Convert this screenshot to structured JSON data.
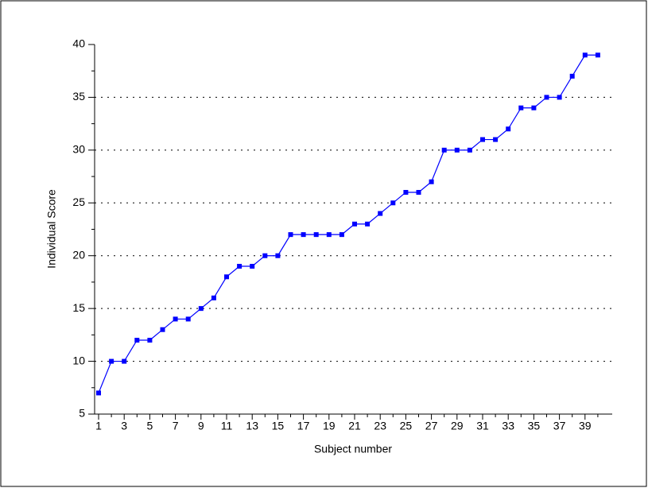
{
  "chart_data": {
    "type": "line",
    "xlabel": "Subject number",
    "ylabel": "Individual Score",
    "categories": [
      "1",
      null,
      "3",
      null,
      "5",
      null,
      "7",
      null,
      "9",
      null,
      "11",
      null,
      "13",
      null,
      "15",
      null,
      "17",
      null,
      "19",
      null,
      "21",
      null,
      "23",
      null,
      "25",
      null,
      "27",
      null,
      "29",
      null,
      "31",
      null,
      "33",
      null,
      "35",
      null,
      "37",
      null,
      "39",
      null
    ],
    "series": [
      {
        "name": "Individual Score",
        "color": "#0000ff",
        "values": [
          7,
          10,
          10,
          12,
          12,
          13,
          14,
          14,
          15,
          16,
          18,
          19,
          19,
          20,
          20,
          22,
          22,
          22,
          22,
          22,
          23,
          23,
          24,
          25,
          26,
          26,
          27,
          30,
          30,
          30,
          31,
          31,
          32,
          34,
          34,
          35,
          35,
          37,
          39,
          39
        ]
      }
    ],
    "ylim": [
      5,
      40
    ],
    "yticks": [
      5,
      10,
      15,
      20,
      25,
      30,
      35,
      40
    ],
    "grid": true
  }
}
